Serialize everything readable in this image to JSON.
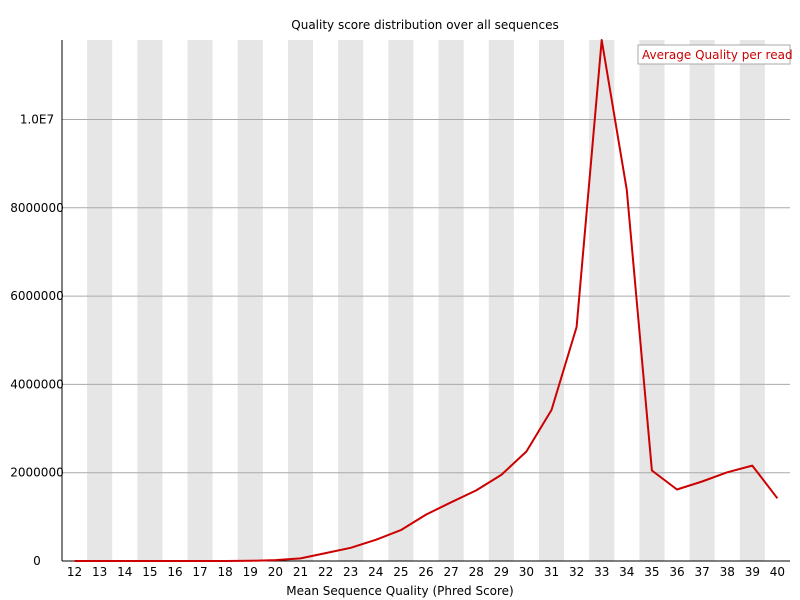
{
  "chart_data": {
    "type": "line",
    "title": "Quality score distribution over all sequences",
    "xlabel": "Mean Sequence Quality (Phred Score)",
    "ylabel": "",
    "x": [
      12,
      13,
      14,
      15,
      16,
      17,
      18,
      19,
      20,
      21,
      22,
      23,
      24,
      25,
      26,
      27,
      28,
      29,
      30,
      31,
      32,
      33,
      34,
      35,
      36,
      37,
      38,
      39,
      40
    ],
    "xlim": [
      12,
      40
    ],
    "ylim": [
      0,
      11800000
    ],
    "y_ticks": [
      0,
      2000000,
      4000000,
      6000000,
      8000000,
      10000000
    ],
    "y_tick_labels": [
      "0",
      "2000000",
      "4000000",
      "6000000",
      "8000000",
      "1.0E7"
    ],
    "grid": true,
    "legend_position": "top-right",
    "series": [
      {
        "name": "Average Quality per read",
        "color": "#cc0000",
        "values": [
          0,
          0,
          0,
          0,
          0,
          0,
          0,
          5000,
          20000,
          60000,
          180000,
          300000,
          480000,
          700000,
          1050000,
          1330000,
          1600000,
          1950000,
          2480000,
          3420000,
          5300000,
          11800000,
          8400000,
          2050000,
          1620000,
          1800000,
          2010000,
          2160000,
          1420000
        ]
      }
    ]
  },
  "colors": {
    "stripe": "#e6e6e6",
    "grid": "#aaaaaa",
    "axis": "#000000",
    "line": "#cc0000"
  }
}
